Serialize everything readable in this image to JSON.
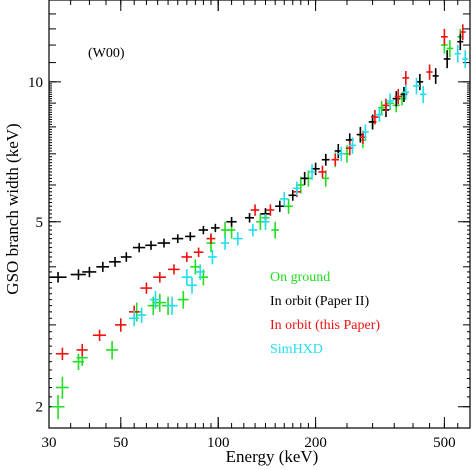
{
  "chart_data": {
    "type": "scatter",
    "title": "",
    "annotation": "(W00)",
    "xlabel": "Energy (keV)",
    "ylabel": "GSO branch width (keV)",
    "xscale": "log",
    "yscale": "log",
    "xlim": [
      30,
      600
    ],
    "ylim": [
      1.8,
      15
    ],
    "xtick_labels": [
      "30",
      "50",
      "100",
      "200",
      "500"
    ],
    "xticks": [
      30,
      50,
      100,
      200,
      500
    ],
    "ytick_labels": [
      "2",
      "5",
      "10"
    ],
    "yticks": [
      2,
      5,
      10
    ],
    "legend_position": "right-middle",
    "series": [
      {
        "name": "On ground",
        "color": "#22dd22",
        "points": [
          [
            32,
            2.0,
            1.5,
            0.12
          ],
          [
            33,
            2.2,
            1.5,
            0.12
          ],
          [
            37,
            2.5,
            1.5,
            0.1
          ],
          [
            38,
            2.55,
            1.5,
            0.1
          ],
          [
            47,
            2.65,
            2,
            0.12
          ],
          [
            56,
            3.2,
            2,
            0.15
          ],
          [
            63,
            3.3,
            2.5,
            0.15
          ],
          [
            66,
            3.35,
            3,
            0.15
          ],
          [
            70,
            3.3,
            3,
            0.15
          ],
          [
            78,
            3.4,
            3,
            0.15
          ],
          [
            85,
            4.0,
            3,
            0.15
          ],
          [
            90,
            3.8,
            3,
            0.15
          ],
          [
            95,
            4.5,
            3,
            0.2
          ],
          [
            105,
            4.8,
            3,
            0.2
          ],
          [
            110,
            4.8,
            3,
            0.2
          ],
          [
            135,
            5.0,
            4,
            0.2
          ],
          [
            140,
            5.1,
            4,
            0.2
          ],
          [
            150,
            4.8,
            4,
            0.2
          ],
          [
            165,
            5.4,
            5,
            0.2
          ],
          [
            180,
            6.0,
            5,
            0.25
          ],
          [
            190,
            6.2,
            5,
            0.25
          ],
          [
            215,
            6.2,
            5,
            0.25
          ],
          [
            230,
            6.8,
            6,
            0.25
          ],
          [
            250,
            7.0,
            6,
            0.3
          ],
          [
            280,
            7.5,
            7,
            0.3
          ],
          [
            300,
            8.2,
            8,
            0.3
          ],
          [
            320,
            8.8,
            8,
            0.3
          ],
          [
            340,
            9.0,
            9,
            0.3
          ],
          [
            355,
            8.9,
            9,
            0.3
          ],
          [
            370,
            9.2,
            9,
            0.3
          ],
          [
            500,
            12.0,
            12,
            0.5
          ],
          [
            520,
            11.8,
            12,
            0.5
          ],
          [
            560,
            12.5,
            12,
            0.5
          ]
        ]
      },
      {
        "name": "In orbit (Paper II)",
        "color": "#000000",
        "points": [
          [
            32,
            3.8,
            2,
            0.1
          ],
          [
            37,
            3.85,
            2,
            0.1
          ],
          [
            40,
            3.9,
            2,
            0.1
          ],
          [
            44,
            4.0,
            2,
            0.1
          ],
          [
            48,
            4.1,
            2,
            0.1
          ],
          [
            52,
            4.2,
            2,
            0.1
          ],
          [
            57,
            4.4,
            2.5,
            0.1
          ],
          [
            62,
            4.45,
            2.5,
            0.1
          ],
          [
            68,
            4.5,
            3,
            0.1
          ],
          [
            75,
            4.6,
            3,
            0.1
          ],
          [
            82,
            4.65,
            3,
            0.1
          ],
          [
            90,
            4.8,
            3,
            0.1
          ],
          [
            98,
            4.85,
            3,
            0.1
          ],
          [
            110,
            5.0,
            4,
            0.12
          ],
          [
            125,
            5.1,
            4,
            0.12
          ],
          [
            140,
            5.2,
            5,
            0.15
          ],
          [
            155,
            5.4,
            5,
            0.15
          ],
          [
            170,
            5.7,
            5,
            0.15
          ],
          [
            185,
            6.2,
            5,
            0.2
          ],
          [
            200,
            6.5,
            6,
            0.2
          ],
          [
            215,
            6.8,
            6,
            0.2
          ],
          [
            235,
            7.1,
            6,
            0.25
          ],
          [
            255,
            7.5,
            7,
            0.25
          ],
          [
            275,
            7.7,
            7,
            0.3
          ],
          [
            300,
            8.2,
            8,
            0.3
          ],
          [
            330,
            8.7,
            8,
            0.3
          ],
          [
            355,
            9.2,
            9,
            0.35
          ],
          [
            375,
            9.4,
            9,
            0.35
          ],
          [
            420,
            10.0,
            10,
            0.4
          ],
          [
            470,
            10.3,
            10,
            0.4
          ],
          [
            510,
            11.2,
            12,
            0.5
          ],
          [
            560,
            12.2,
            12,
            0.5
          ]
        ]
      },
      {
        "name": "In orbit (this Paper)",
        "color": "#ee1111",
        "points": [
          [
            33,
            2.6,
            1.5,
            0.08
          ],
          [
            38,
            2.65,
            1.5,
            0.08
          ],
          [
            43,
            2.85,
            2,
            0.08
          ],
          [
            50,
            3.0,
            2,
            0.1
          ],
          [
            55,
            3.2,
            2,
            0.1
          ],
          [
            60,
            3.6,
            2.5,
            0.1
          ],
          [
            66,
            3.8,
            3,
            0.1
          ],
          [
            73,
            3.95,
            3,
            0.1
          ],
          [
            80,
            4.2,
            3,
            0.1
          ],
          [
            87,
            4.3,
            3,
            0.1
          ],
          [
            95,
            4.6,
            3,
            0.12
          ],
          [
            130,
            5.3,
            4,
            0.15
          ],
          [
            145,
            5.3,
            4,
            0.15
          ],
          [
            175,
            5.8,
            5,
            0.15
          ],
          [
            210,
            6.4,
            6,
            0.2
          ],
          [
            230,
            6.8,
            6,
            0.2
          ],
          [
            255,
            7.2,
            7,
            0.25
          ],
          [
            280,
            7.6,
            7,
            0.25
          ],
          [
            305,
            8.4,
            8,
            0.3
          ],
          [
            330,
            8.9,
            8,
            0.3
          ],
          [
            360,
            9.3,
            9,
            0.35
          ],
          [
            380,
            10.2,
            9,
            0.35
          ],
          [
            450,
            10.5,
            10,
            0.4
          ],
          [
            500,
            12.5,
            12,
            0.5
          ],
          [
            570,
            12.8,
            12,
            0.5
          ]
        ]
      },
      {
        "name": "SimHXD",
        "color": "#22ddee",
        "points": [
          [
            55,
            3.1,
            2,
            0.12
          ],
          [
            58,
            3.15,
            2,
            0.12
          ],
          [
            64,
            3.4,
            2.5,
            0.15
          ],
          [
            72,
            3.3,
            3,
            0.15
          ],
          [
            80,
            3.8,
            3,
            0.15
          ],
          [
            83,
            3.65,
            3,
            0.15
          ],
          [
            88,
            3.9,
            3,
            0.15
          ],
          [
            96,
            4.2,
            3,
            0.15
          ],
          [
            105,
            4.5,
            3,
            0.15
          ],
          [
            115,
            4.6,
            4,
            0.15
          ],
          [
            128,
            4.8,
            4,
            0.15
          ],
          [
            140,
            5.0,
            4,
            0.2
          ],
          [
            160,
            5.6,
            5,
            0.2
          ],
          [
            175,
            5.9,
            5,
            0.2
          ],
          [
            195,
            6.4,
            5,
            0.25
          ],
          [
            240,
            7.0,
            6,
            0.25
          ],
          [
            260,
            7.3,
            7,
            0.3
          ],
          [
            285,
            7.8,
            7,
            0.3
          ],
          [
            315,
            8.5,
            8,
            0.3
          ],
          [
            340,
            9.1,
            9,
            0.35
          ],
          [
            380,
            9.5,
            9,
            0.35
          ],
          [
            410,
            9.8,
            10,
            0.4
          ],
          [
            430,
            9.4,
            10,
            0.4
          ],
          [
            550,
            11.5,
            12,
            0.5
          ],
          [
            580,
            11.2,
            12,
            0.5
          ]
        ]
      }
    ]
  }
}
